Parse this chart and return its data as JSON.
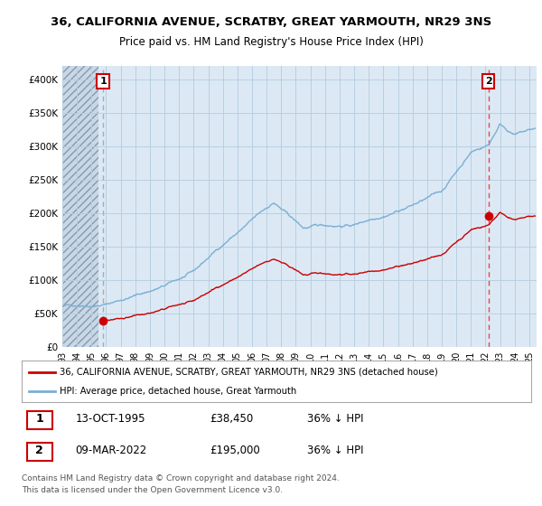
{
  "title": "36, CALIFORNIA AVENUE, SCRATBY, GREAT YARMOUTH, NR29 3NS",
  "subtitle": "Price paid vs. HM Land Registry's House Price Index (HPI)",
  "xlim_start": 1993.0,
  "xlim_end": 2025.5,
  "ylim_min": 0,
  "ylim_max": 420000,
  "yticks": [
    0,
    50000,
    100000,
    150000,
    200000,
    250000,
    300000,
    350000,
    400000
  ],
  "ytick_labels": [
    "£0",
    "£50K",
    "£100K",
    "£150K",
    "£200K",
    "£250K",
    "£300K",
    "£350K",
    "£400K"
  ],
  "sale1_date": 1995.79,
  "sale1_price": 38450,
  "sale1_label": "1",
  "sale2_date": 2022.19,
  "sale2_price": 195000,
  "sale2_label": "2",
  "hpi_color": "#7bafd4",
  "price_color": "#cc0000",
  "vline1_color": "#999999",
  "vline2_color": "#ee4444",
  "annotation_box_color": "#cc0000",
  "grid_color": "#b8cfe0",
  "plot_bg_color": "#dce9f5",
  "hatch_bg_color": "#c8d8e8",
  "legend_label_price": "36, CALIFORNIA AVENUE, SCRATBY, GREAT YARMOUTH, NR29 3NS (detached house)",
  "legend_label_hpi": "HPI: Average price, detached house, Great Yarmouth",
  "footer1": "Contains HM Land Registry data © Crown copyright and database right 2024.",
  "footer2": "This data is licensed under the Open Government Licence v3.0.",
  "ann1_date": "13-OCT-1995",
  "ann1_price": "£38,450",
  "ann1_hpi": "36% ↓ HPI",
  "ann2_date": "09-MAR-2022",
  "ann2_price": "£195,000",
  "ann2_hpi": "36% ↓ HPI",
  "background_color": "#ffffff"
}
